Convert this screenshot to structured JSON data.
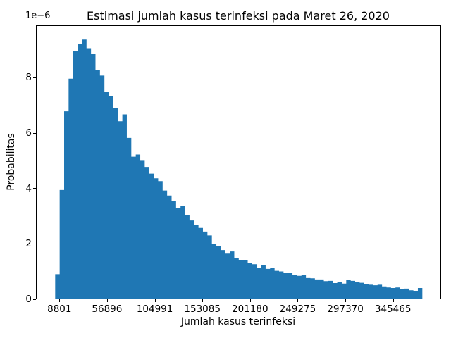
{
  "figure": {
    "background": "#ffffff"
  },
  "chart_data": {
    "type": "bar",
    "subtype": "histogram",
    "title": "Estimasi jumlah kasus terinfeksi pada Maret 26, 2020",
    "xlabel": "Jumlah kasus terinfeksi",
    "ylabel": "Probabilitas",
    "y_offset_label": "1e−6",
    "bar_color": "#1f77b4",
    "grid": false,
    "legend": false,
    "x_tick_labels": [
      "8801",
      "56896",
      "104991",
      "153085",
      "201180",
      "249275",
      "297370",
      "345465"
    ],
    "x_tick_interval": 48095,
    "y_tick_values": [
      0,
      2,
      4,
      6,
      8
    ],
    "y_tick_labels": [
      "0",
      "2",
      "4",
      "6",
      "8"
    ],
    "y_scale": "1e-6",
    "ylim": [
      0,
      9.84
    ],
    "bin_count": 82,
    "values_unit": "probability ×1e-6",
    "values": [
      0.88,
      3.92,
      6.76,
      7.94,
      8.95,
      9.2,
      9.35,
      9.04,
      8.84,
      8.25,
      8.05,
      7.46,
      7.31,
      6.87,
      6.4,
      6.65,
      5.8,
      5.12,
      5.2,
      5.0,
      4.75,
      4.51,
      4.34,
      4.24,
      3.9,
      3.72,
      3.52,
      3.28,
      3.34,
      3.0,
      2.82,
      2.65,
      2.55,
      2.42,
      2.28,
      1.98,
      1.88,
      1.75,
      1.62,
      1.7,
      1.46,
      1.4,
      1.4,
      1.28,
      1.24,
      1.12,
      1.2,
      1.07,
      1.11,
      1.0,
      0.98,
      0.92,
      0.94,
      0.86,
      0.82,
      0.86,
      0.74,
      0.73,
      0.69,
      0.69,
      0.63,
      0.64,
      0.56,
      0.6,
      0.54,
      0.66,
      0.64,
      0.6,
      0.57,
      0.53,
      0.5,
      0.48,
      0.5,
      0.44,
      0.4,
      0.38,
      0.4,
      0.34,
      0.36,
      0.3,
      0.28,
      0.38
    ]
  }
}
